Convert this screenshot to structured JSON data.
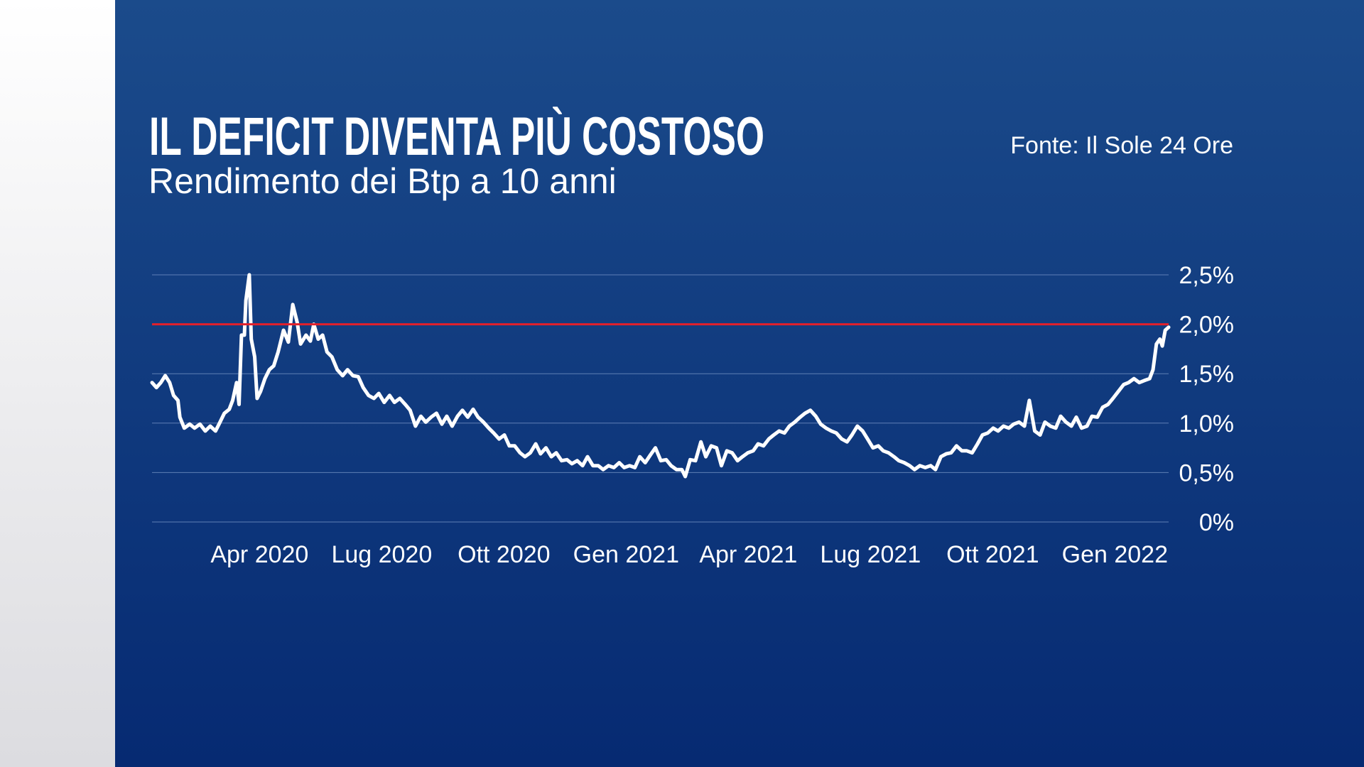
{
  "chart_data": {
    "type": "line",
    "title": "IL DEFICIT DIVENTA PIÙ COSTOSO",
    "subtitle": "Rendimento dei Btp a 10 anni",
    "source": "Fonte: Il Sole 24 Ore",
    "color": "#ffffff",
    "reference_line": {
      "value": 2,
      "color": "#e3202b"
    },
    "grid": true,
    "xlim": [
      2020.03,
      2022.11
    ],
    "ylim": [
      0,
      2.5
    ],
    "xticks": [
      {
        "value": 2020.25,
        "label": "Apr 2020"
      },
      {
        "value": 2020.5,
        "label": "Lug 2020"
      },
      {
        "value": 2020.75,
        "label": "Ott 2020"
      },
      {
        "value": 2021.0,
        "label": "Gen 2021"
      },
      {
        "value": 2021.25,
        "label": "Apr 2021"
      },
      {
        "value": 2021.5,
        "label": "Lug 2021"
      },
      {
        "value": 2021.75,
        "label": "Ott 2021"
      },
      {
        "value": 2022.0,
        "label": "Gen 2022"
      }
    ],
    "yticks": [
      {
        "value": 0,
        "label": "0%"
      },
      {
        "value": 0.5,
        "label": "0,5%"
      },
      {
        "value": 1,
        "label": "1,0%"
      },
      {
        "value": 1.5,
        "label": "1,5%"
      },
      {
        "value": 2,
        "label": "2,0%"
      },
      {
        "value": 2.5,
        "label": "2,5%"
      }
    ],
    "x": [
      2020.03,
      2020.039,
      2020.048,
      2020.057,
      2020.066,
      2020.074,
      2020.083,
      2020.087,
      2020.096,
      2020.107,
      2020.117,
      2020.128,
      2020.139,
      2020.149,
      2020.16,
      2020.167,
      2020.178,
      2020.188,
      2020.195,
      2020.203,
      2020.208,
      2020.213,
      2020.219,
      2020.222,
      2020.229,
      2020.233,
      2020.24,
      2020.245,
      2020.252,
      2020.261,
      2020.27,
      2020.279,
      2020.288,
      2020.299,
      2020.309,
      2020.318,
      2020.327,
      2020.334,
      2020.345,
      2020.354,
      2020.361,
      2020.37,
      2020.379,
      2020.388,
      2020.398,
      2020.409,
      2020.42,
      2020.43,
      2020.441,
      2020.452,
      2020.462,
      2020.473,
      2020.484,
      2020.494,
      2020.505,
      2020.516,
      2020.526,
      2020.537,
      2020.548,
      2020.558,
      2020.569,
      2020.58,
      2020.59,
      2020.601,
      2020.612,
      2020.623,
      2020.633,
      2020.644,
      2020.655,
      2020.665,
      2020.676,
      2020.687,
      2020.697,
      2020.708,
      2020.719,
      2020.729,
      2020.74,
      2020.751,
      2020.761,
      2020.772,
      2020.783,
      2020.793,
      2020.804,
      2020.815,
      2020.825,
      2020.836,
      2020.847,
      2020.857,
      2020.868,
      2020.879,
      2020.889,
      2020.9,
      2020.911,
      2020.921,
      2020.932,
      2020.943,
      2020.953,
      2020.964,
      2020.975,
      2020.986,
      2020.996,
      2021.007,
      2021.018,
      2021.028,
      2021.039,
      2021.05,
      2021.06,
      2021.071,
      2021.082,
      2021.092,
      2021.103,
      2021.114,
      2021.121,
      2021.131,
      2021.142,
      2021.153,
      2021.163,
      2021.174,
      2021.185,
      2021.195,
      2021.206,
      2021.217,
      2021.228,
      2021.238,
      2021.249,
      2021.26,
      2021.27,
      2021.281,
      2021.292,
      2021.302,
      2021.313,
      2021.324,
      2021.334,
      2021.345,
      2021.356,
      2021.366,
      2021.377,
      2021.388,
      2021.398,
      2021.409,
      2021.42,
      2021.43,
      2021.441,
      2021.452,
      2021.462,
      2021.473,
      2021.484,
      2021.494,
      2021.505,
      2021.516,
      2021.526,
      2021.537,
      2021.548,
      2021.558,
      2021.569,
      2021.58,
      2021.59,
      2021.601,
      2021.612,
      2021.623,
      2021.633,
      2021.644,
      2021.655,
      2021.665,
      2021.676,
      2021.687,
      2021.697,
      2021.708,
      2021.719,
      2021.729,
      2021.74,
      2021.751,
      2021.761,
      2021.772,
      2021.783,
      2021.793,
      2021.804,
      2021.815,
      2021.825,
      2021.836,
      2021.847,
      2021.857,
      2021.868,
      2021.879,
      2021.889,
      2021.9,
      2021.911,
      2021.921,
      2021.932,
      2021.943,
      2021.953,
      2021.964,
      2021.975,
      2021.986,
      2021.996,
      2022.007,
      2022.018,
      2022.028,
      2022.039,
      2022.05,
      2022.06,
      2022.071,
      2022.078,
      2022.085,
      2022.092,
      2022.097,
      2022.103,
      2022.11
    ],
    "values": [
      1.41,
      1.36,
      1.41,
      1.48,
      1.41,
      1.28,
      1.23,
      1.06,
      0.95,
      0.99,
      0.95,
      0.99,
      0.92,
      0.97,
      0.92,
      0.99,
      1.1,
      1.14,
      1.23,
      1.41,
      1.19,
      1.89,
      1.89,
      2.24,
      2.5,
      1.85,
      1.67,
      1.25,
      1.32,
      1.45,
      1.54,
      1.58,
      1.72,
      1.94,
      1.82,
      2.2,
      2.02,
      1.8,
      1.89,
      1.83,
      2.0,
      1.85,
      1.89,
      1.72,
      1.67,
      1.54,
      1.48,
      1.54,
      1.48,
      1.47,
      1.36,
      1.28,
      1.25,
      1.3,
      1.21,
      1.28,
      1.21,
      1.25,
      1.19,
      1.13,
      0.97,
      1.07,
      1.01,
      1.06,
      1.1,
      0.99,
      1.07,
      0.97,
      1.07,
      1.13,
      1.06,
      1.14,
      1.06,
      1.01,
      0.95,
      0.9,
      0.84,
      0.88,
      0.77,
      0.77,
      0.7,
      0.66,
      0.7,
      0.79,
      0.69,
      0.75,
      0.66,
      0.7,
      0.62,
      0.63,
      0.59,
      0.62,
      0.57,
      0.66,
      0.57,
      0.57,
      0.53,
      0.57,
      0.55,
      0.6,
      0.55,
      0.57,
      0.55,
      0.66,
      0.6,
      0.68,
      0.75,
      0.62,
      0.63,
      0.57,
      0.53,
      0.53,
      0.46,
      0.63,
      0.62,
      0.81,
      0.66,
      0.77,
      0.75,
      0.57,
      0.72,
      0.7,
      0.62,
      0.66,
      0.7,
      0.72,
      0.79,
      0.77,
      0.84,
      0.88,
      0.92,
      0.9,
      0.97,
      1.01,
      1.06,
      1.1,
      1.13,
      1.07,
      0.99,
      0.95,
      0.92,
      0.9,
      0.84,
      0.81,
      0.88,
      0.97,
      0.92,
      0.84,
      0.75,
      0.77,
      0.72,
      0.7,
      0.66,
      0.62,
      0.6,
      0.57,
      0.53,
      0.57,
      0.55,
      0.57,
      0.53,
      0.66,
      0.69,
      0.7,
      0.77,
      0.72,
      0.72,
      0.7,
      0.79,
      0.88,
      0.9,
      0.95,
      0.92,
      0.97,
      0.95,
      0.99,
      1.01,
      0.97,
      1.23,
      0.92,
      0.88,
      1.01,
      0.97,
      0.95,
      1.07,
      1.01,
      0.97,
      1.06,
      0.95,
      0.97,
      1.07,
      1.06,
      1.16,
      1.19,
      1.25,
      1.32,
      1.39,
      1.41,
      1.45,
      1.41,
      1.43,
      1.45,
      1.54,
      1.8,
      1.85,
      1.78,
      1.94,
      1.97
    ]
  }
}
